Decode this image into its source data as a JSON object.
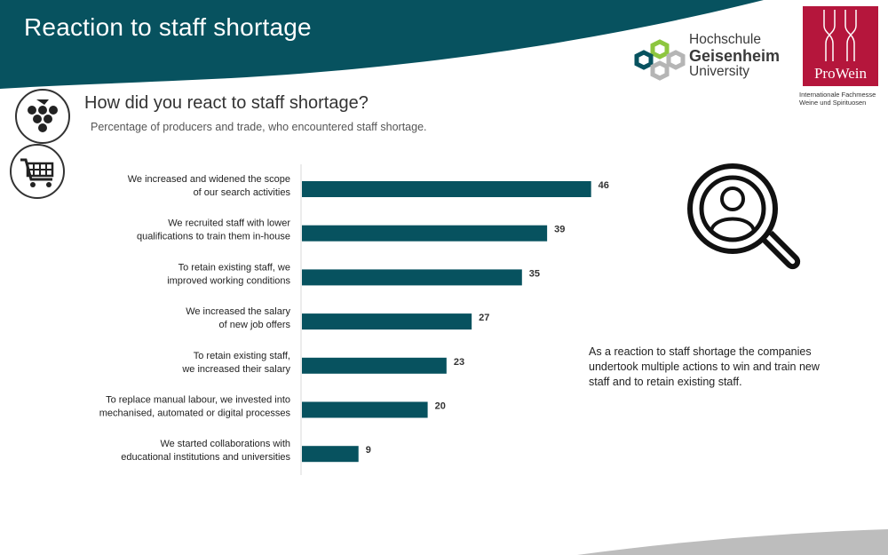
{
  "header": {
    "title": "Reaction to staff shortage",
    "band_color": "#07525f"
  },
  "logos": {
    "hochschule": [
      "Hochschule",
      "Geisenheim",
      "University"
    ],
    "prowein": "ProWein",
    "prowein_sub": [
      "Internationale Fachmesse",
      "Weine und Spirituosen"
    ]
  },
  "icons": [
    "grapes-icon",
    "shopping-cart-icon",
    "person-search-icon"
  ],
  "question": {
    "title": "How did you react to staff shortage?",
    "subtitle": "Percentage of producers and trade, who encountered staff shortage."
  },
  "note": "As a reaction to staff shortage the companies undertook multiple actions to win and train new staff and to retain existing staff.",
  "chart_data": {
    "type": "bar",
    "orientation": "horizontal",
    "bar_color": "#07525f",
    "categories": [
      [
        "We increased and widened the scope",
        "of our search activities"
      ],
      [
        "We recruited staff with lower",
        "qualifications to train them in-house"
      ],
      [
        "To retain existing staff, we",
        "improved working conditions"
      ],
      [
        "We increased the salary",
        "of new job offers"
      ],
      [
        "To retain existing staff,",
        "we increased their salary"
      ],
      [
        "To replace manual labour, we invested into",
        "mechanised, automated or digital processes"
      ],
      [
        "We started collaborations with",
        "educational institutions and universities"
      ]
    ],
    "values": [
      46,
      39,
      35,
      27,
      23,
      20,
      9
    ],
    "xlim": [
      0,
      50
    ],
    "grid": false,
    "legend": "none"
  }
}
